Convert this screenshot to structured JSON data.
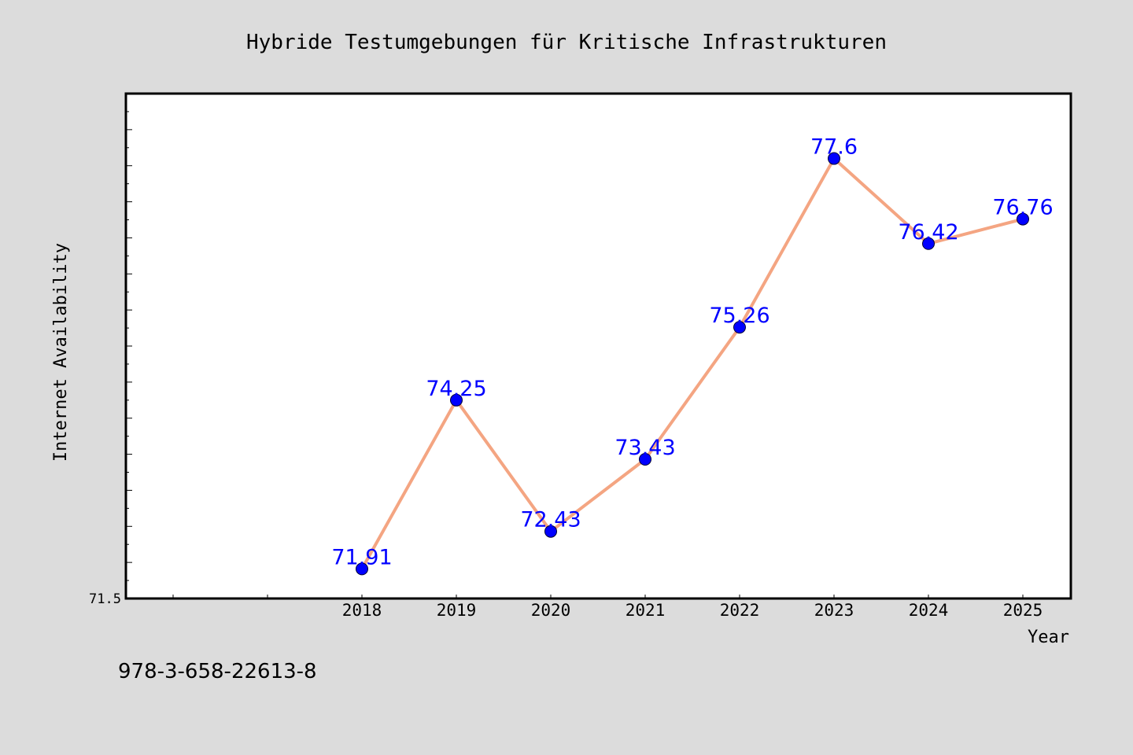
{
  "chart_data": {
    "type": "line",
    "title": "Hybride Testumgebungen für Kritische Infrastrukturen",
    "xlabel": "Year",
    "ylabel": "Internet Availability",
    "categories": [
      "2018",
      "2019",
      "2020",
      "2021",
      "2022",
      "2023",
      "2024",
      "2025"
    ],
    "series": [
      {
        "values": [
          71.91,
          74.25,
          72.43,
          73.43,
          75.26,
          77.6,
          76.42,
          76.76
        ],
        "labels": [
          "71.91",
          "74.25",
          "72.43",
          "73.43",
          "75.26",
          "77.6",
          "76.42",
          "76.76"
        ]
      }
    ],
    "ylim": [
      71.5,
      78.5
    ],
    "yticks_labeled": [
      "71.5"
    ],
    "grid": false,
    "legend": "none",
    "colors": {
      "line": "#f4a582",
      "marker": "#0000ff",
      "data_label": "#0000ff",
      "background": "#dcdcdc",
      "plot_background": "#ffffff"
    }
  },
  "footer_text": "978-3-658-22613-8"
}
